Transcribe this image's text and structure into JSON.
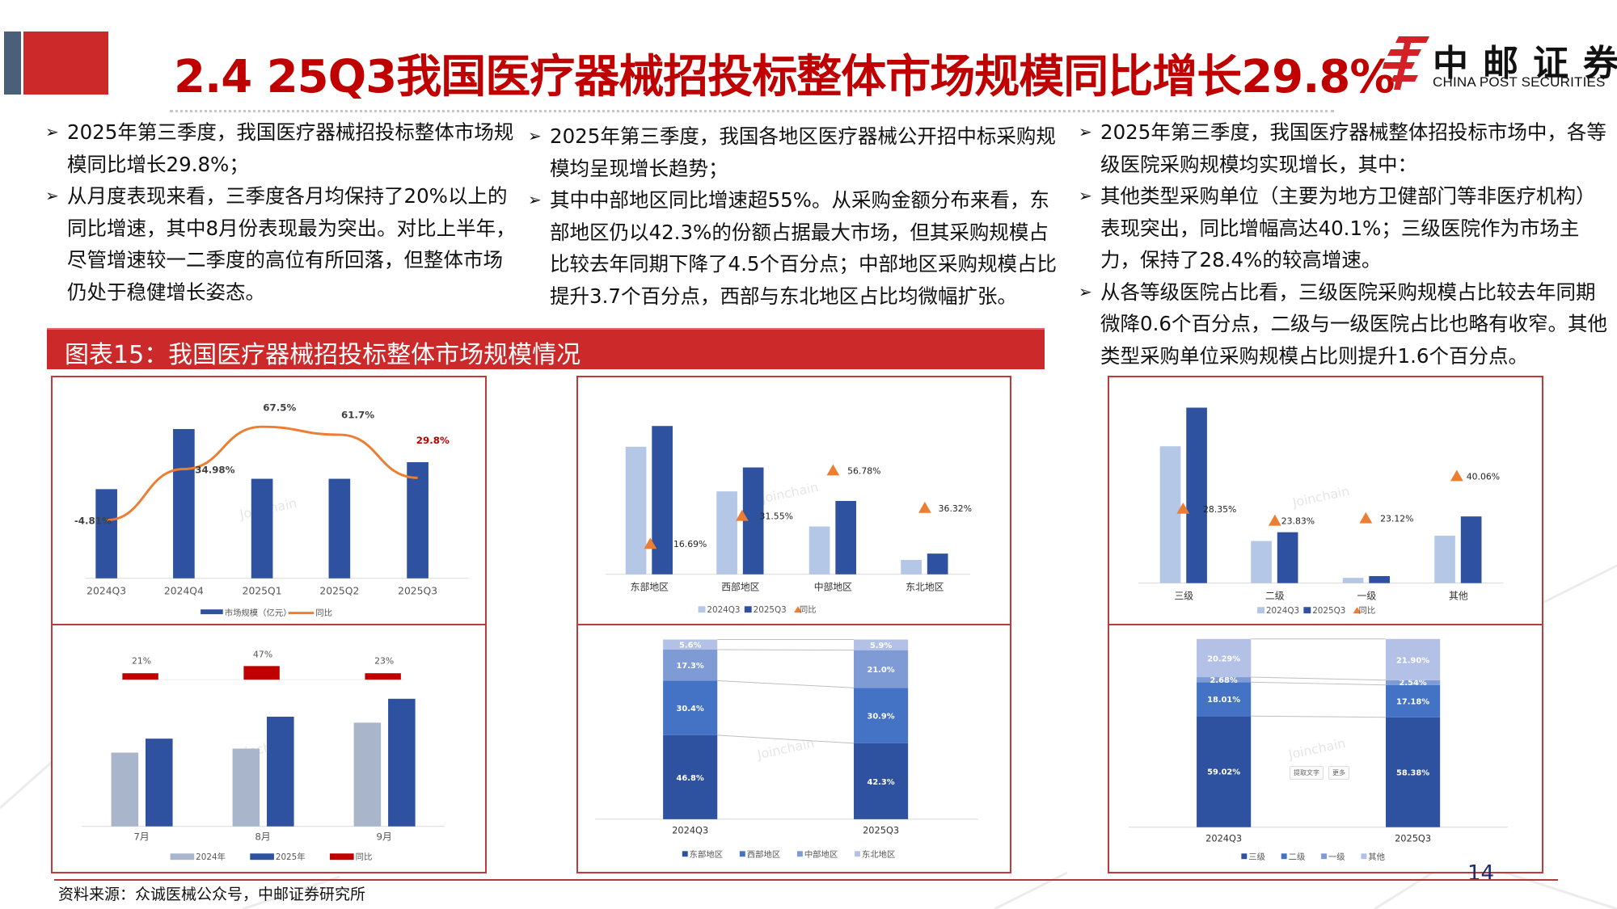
{
  "header": {
    "title": "2.4 25Q3我国医疗器械招投标整体市场规模同比增长29.8%",
    "logo_cn": "中邮证券",
    "logo_en": "CHINA POST SECURITIES",
    "brand_red": "#c00000",
    "block_gray": "#4a5f78",
    "block_red": "#cc2a2a"
  },
  "columns": [
    {
      "bullets": [
        "2025年第三季度，我国医疗器械招投标整体市场规模同比增长29.8%；",
        "从月度表现来看，三季度各月均保持了20%以上的同比增速，其中8月份表现最为突出。对比上半年，尽管增速较一二季度的高位有所回落，但整体市场仍处于稳健增长姿态。"
      ]
    },
    {
      "bullets": [
        "2025年第三季度，我国各地区医疗器械公开招中标采购规模均呈现增长趋势；",
        "其中中部地区同比增速超55%。从采购金额分布来看，东部地区仍以42.3%的份额占据最大市场，但其采购规模占比较去年同期下降了4.5个百分点；中部地区采购规模占比提升3.7个百分点，西部与东北地区占比均微幅扩张。"
      ]
    },
    {
      "bullets": [
        "2025年第三季度，我国医疗器械整体招投标市场中，各等级医院采购规模均实现增长，其中：",
        "其他类型采购单位（主要为地方卫健部门等非医疗机构）表现突出，同比增幅高达40.1%；三级医院作为市场主力，保持了28.4%的较高增速。",
        "从各等级医院占比看，三级医院采购规模占比较去年同期微降0.6个百分点，二级与一级医院占比也略有收窄。其他类型采购单位采购规模占比则提升1.6个百分点。"
      ]
    }
  ],
  "bullet_icon": "arrow-bullet-icon",
  "figure": {
    "label": "图表15：我国医疗器械招投标整体市场规模情况"
  },
  "source": "资料来源：众诚医械公众号，中邮证券研究所",
  "page_number": "14",
  "watermark": "Joinchain",
  "popup": {
    "extract": "提取文字",
    "more": "更多"
  },
  "chart_data": [
    {
      "type": "bar",
      "subtype": "bar+line",
      "title": "",
      "categories": [
        "2024Q3",
        "2024Q4",
        "2025Q1",
        "2025Q2",
        "2025Q3"
      ],
      "series": [
        {
          "name": "市场规模（亿元）",
          "kind": "bar",
          "color": "#2e51a0",
          "values_relative": [
            0.43,
            0.72,
            0.48,
            0.48,
            0.56
          ]
        },
        {
          "name": "同比",
          "kind": "line",
          "color": "#ed7d31",
          "values": [
            -4.81,
            34.98,
            67.5,
            61.7,
            29.8
          ],
          "labels": [
            "-4.81%",
            "34.98%",
            "67.5%",
            "61.7%",
            "29.8%"
          ]
        }
      ],
      "highlight_label": {
        "index": 4,
        "color": "#c00000"
      },
      "legend_position": "bottom",
      "grid": false
    },
    {
      "type": "bar",
      "title": "",
      "categories": [
        "7月",
        "8月",
        "9月"
      ],
      "series": [
        {
          "name": "2024年",
          "color": "#a8b5ca",
          "values_relative": [
            0.37,
            0.39,
            0.52
          ]
        },
        {
          "name": "2025年",
          "color": "#2e51a0",
          "values_relative": [
            0.44,
            0.55,
            0.64
          ]
        },
        {
          "name": "同比",
          "color": "#c00000",
          "values": [
            21,
            47,
            23
          ],
          "labels": [
            "21%",
            "47%",
            "23%"
          ]
        }
      ],
      "legend_position": "bottom",
      "grid": false
    },
    {
      "type": "bar",
      "title": "",
      "categories": [
        "东部地区",
        "西部地区",
        "中部地区",
        "东北地区"
      ],
      "series": [
        {
          "name": "2024Q3",
          "color": "#b4c7e7",
          "values_relative": [
            0.8,
            0.52,
            0.3,
            0.09
          ]
        },
        {
          "name": "2025Q3",
          "color": "#2e51a0",
          "values_relative": [
            0.93,
            0.67,
            0.46,
            0.13
          ]
        },
        {
          "name": "同比",
          "kind": "marker",
          "color": "#ed7d31",
          "values": [
            16.69,
            31.55,
            56.78,
            36.32
          ],
          "labels": [
            "16.69%",
            "31.55%",
            "56.78%",
            "36.32%"
          ]
        }
      ],
      "legend_position": "bottom",
      "grid": false
    },
    {
      "type": "bar",
      "subtype": "stacked-100",
      "title": "",
      "categories": [
        "2024Q3",
        "2025Q3"
      ],
      "series": [
        {
          "name": "东部地区",
          "color": "#2e51a0",
          "values": [
            46.8,
            42.3
          ]
        },
        {
          "name": "西部地区",
          "color": "#4472c4",
          "values": [
            30.4,
            30.9
          ]
        },
        {
          "name": "中部地区",
          "color": "#7f9bd6",
          "values": [
            17.3,
            21.0
          ]
        },
        {
          "name": "东北地区",
          "color": "#b4c1e6",
          "values": [
            5.6,
            5.9
          ]
        }
      ],
      "legend_position": "bottom",
      "grid": false
    },
    {
      "type": "bar",
      "title": "",
      "categories": [
        "三级",
        "二级",
        "一级",
        "其他"
      ],
      "series": [
        {
          "name": "2024Q3",
          "color": "#b4c7e7",
          "values_relative": [
            0.78,
            0.24,
            0.03,
            0.27
          ]
        },
        {
          "name": "2025Q3",
          "color": "#2e51a0",
          "values_relative": [
            1.0,
            0.29,
            0.04,
            0.38
          ]
        },
        {
          "name": "同比",
          "kind": "marker",
          "color": "#ed7d31",
          "values": [
            28.35,
            23.83,
            23.12,
            40.06
          ],
          "labels": [
            "28.35%",
            "23.83%",
            "23.12%",
            "40.06%"
          ]
        }
      ],
      "legend_position": "bottom",
      "grid": false
    },
    {
      "type": "bar",
      "subtype": "stacked-100",
      "title": "",
      "categories": [
        "2024Q3",
        "2025Q3"
      ],
      "series": [
        {
          "name": "三级",
          "color": "#2e51a0",
          "values": [
            59.02,
            58.38
          ]
        },
        {
          "name": "二级",
          "color": "#4472c4",
          "values": [
            18.01,
            17.18
          ]
        },
        {
          "name": "一级",
          "color": "#7f9bd6",
          "values": [
            2.68,
            2.54
          ]
        },
        {
          "name": "其他",
          "color": "#b4c1e6",
          "values": [
            20.29,
            21.9
          ]
        }
      ],
      "legend_position": "bottom",
      "grid": false
    }
  ]
}
